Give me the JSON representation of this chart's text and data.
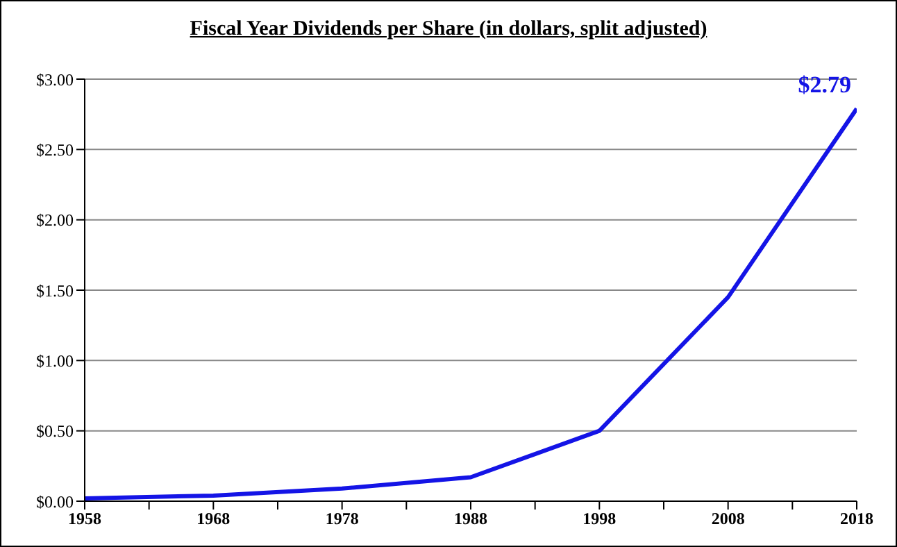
{
  "chart_data": {
    "type": "line",
    "title": "Fiscal Year Dividends per Share (in dollars, split adjusted)",
    "x": [
      1958,
      1968,
      1978,
      1988,
      1998,
      2008,
      2018
    ],
    "series": [
      {
        "color": "#1414e6",
        "values": [
          0.02,
          0.04,
          0.09,
          0.17,
          0.5,
          1.45,
          2.79
        ]
      }
    ],
    "xlim": [
      1958,
      2018
    ],
    "xticks": [
      1958,
      {
        "value": 1963,
        "label": null
      },
      1968,
      {
        "value": 1973,
        "label": null
      },
      1978,
      {
        "value": 1983,
        "label": null
      },
      1988,
      {
        "value": 1993,
        "label": null
      },
      1998,
      {
        "value": 2003,
        "label": null
      },
      2008,
      {
        "value": 2013,
        "label": null
      },
      2018
    ],
    "ylim": [
      0,
      3
    ],
    "yticks": [
      {
        "value": 0,
        "label": "$0.00"
      },
      {
        "value": 0.5,
        "label": "$0.50"
      },
      {
        "value": 1,
        "label": "$1.00"
      },
      {
        "value": 1.5,
        "label": "$1.50"
      },
      {
        "value": 2,
        "label": "$2.00"
      },
      {
        "value": 2.5,
        "label": "$2.50"
      },
      {
        "value": 3,
        "label": "$3.00"
      }
    ],
    "grid": "y",
    "marker": "none",
    "line_style": "solid",
    "annotations": [
      {
        "text": "$2.79",
        "x": 2018,
        "y": 2.79
      }
    ]
  }
}
